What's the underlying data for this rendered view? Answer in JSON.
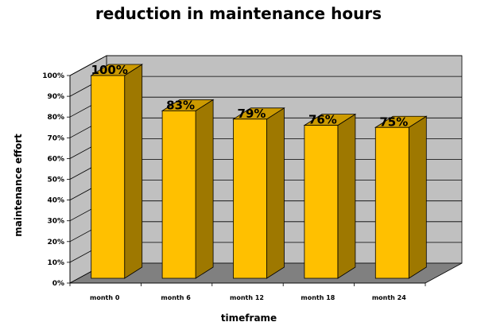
{
  "chart_data": {
    "type": "bar",
    "title": "reduction in maintenance hours",
    "xlabel": "timeframe",
    "ylabel": "maintenance effort",
    "categories": [
      "month 0",
      "month 6",
      "month 12",
      "month 18",
      "month 24"
    ],
    "values": [
      100,
      83,
      79,
      76,
      75
    ],
    "data_labels": [
      "100%",
      "83%",
      "79%",
      "76%",
      "75%"
    ],
    "y_ticks": [
      "0%",
      "10%",
      "20%",
      "30%",
      "40%",
      "50%",
      "60%",
      "70%",
      "80%",
      "90%",
      "100%"
    ],
    "ylim": [
      0,
      100
    ],
    "grid": true,
    "three_d": true,
    "colors": {
      "bar_front": "#ffc000",
      "bar_top": "#cc9a00",
      "bar_side": "#9e7800",
      "wall": "#c0c0c0",
      "floor": "#808080",
      "gridline": "#000000"
    }
  }
}
